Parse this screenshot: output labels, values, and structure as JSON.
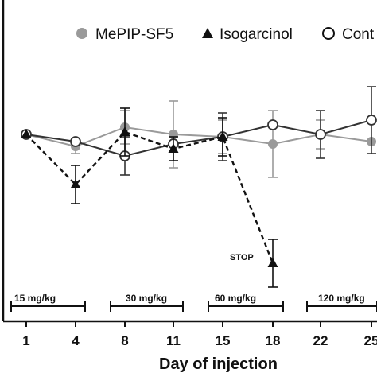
{
  "chart_data": {
    "type": "line",
    "x": [
      1,
      4,
      8,
      11,
      15,
      18,
      22,
      25
    ],
    "x_ticks": [
      "1",
      "4",
      "8",
      "11",
      "15",
      "18",
      "22",
      "25"
    ],
    "xlabel": "Day of injection",
    "ylabel": "",
    "ylim": [
      0,
      100
    ],
    "grid": false,
    "legend_position": "top",
    "series": [
      {
        "name": "MePIP-SF5",
        "marker": "filled-circle",
        "color": "#9a9a9a",
        "line_style": "solid",
        "x": [
          1,
          4,
          8,
          11,
          15,
          18,
          22,
          25
        ],
        "values": [
          69,
          64,
          72,
          69,
          68,
          65,
          69,
          66
        ],
        "errors": [
          0,
          3,
          7,
          14,
          7,
          14,
          6,
          0
        ]
      },
      {
        "name": "Isogarcinol",
        "marker": "filled-triangle",
        "color": "#111111",
        "line_style": "dashed",
        "x": [
          1,
          4,
          8,
          11,
          15,
          18
        ],
        "values": [
          69,
          48,
          70,
          63,
          68,
          15
        ],
        "errors": [
          0,
          8,
          10,
          5,
          8,
          10
        ]
      },
      {
        "name": "Control",
        "marker": "open-circle",
        "color": "#333333",
        "line_style": "solid",
        "x": [
          1,
          4,
          8,
          11,
          15,
          18,
          22,
          25
        ],
        "values": [
          69,
          66,
          60,
          65,
          68,
          73,
          69,
          75
        ],
        "errors": [
          0,
          0,
          8,
          0,
          10,
          0,
          10,
          14
        ]
      }
    ],
    "legend_labels": [
      "MePIP-SF5",
      "Isogarcinol",
      "Cont"
    ],
    "annotations": {
      "stop": "STOP",
      "doses": [
        {
          "label": "15 mg/kg",
          "x_start": 1,
          "x_end": 4
        },
        {
          "label": "30 mg/kg",
          "x_start": 8,
          "x_end": 11
        },
        {
          "label": "60 mg/kg",
          "x_start": 15,
          "x_end": 18
        },
        {
          "label": "120 mg/kg",
          "x_start": 22,
          "x_end": 25
        }
      ]
    }
  }
}
